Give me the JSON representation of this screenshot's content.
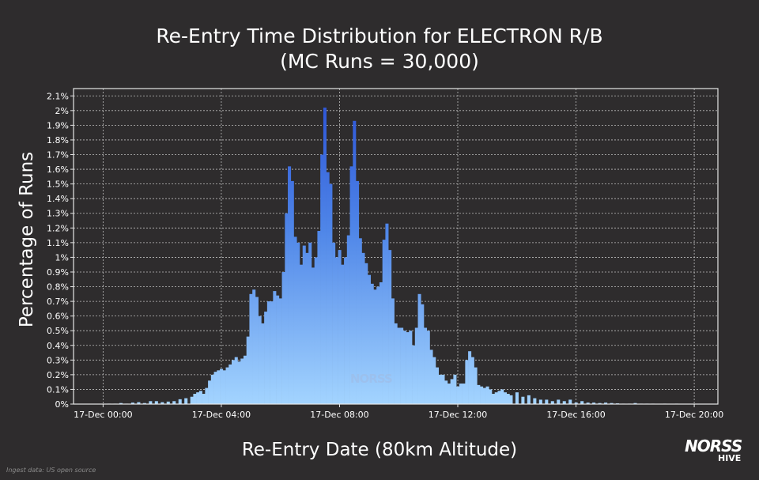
{
  "chart_data": {
    "type": "bar",
    "title": [
      "Re-Entry Time Distribution for ELECTRON R/B",
      "(MC Runs = 30,000)"
    ],
    "xlabel": "Re-Entry Date (80km Altitude)",
    "ylabel": "Percentage of Runs",
    "x_unit": "hours after 17-Dec 00:00",
    "xlim": [
      -1,
      20.8
    ],
    "ylim": [
      0,
      2.15
    ],
    "grid": true,
    "x_ticks": [
      {
        "x": 0,
        "label": "17-Dec 00:00"
      },
      {
        "x": 4,
        "label": "17-Dec 04:00"
      },
      {
        "x": 8,
        "label": "17-Dec 08:00"
      },
      {
        "x": 12,
        "label": "17-Dec 12:00"
      },
      {
        "x": 16,
        "label": "17-Dec 16:00"
      },
      {
        "x": 20,
        "label": "17-Dec 20:00"
      }
    ],
    "y_ticks": [
      {
        "y": 0,
        "label": "0%"
      },
      {
        "y": 0.1,
        "label": "0.1%"
      },
      {
        "y": 0.2,
        "label": "0.2%"
      },
      {
        "y": 0.3,
        "label": "0.3%"
      },
      {
        "y": 0.4,
        "label": "0.4%"
      },
      {
        "y": 0.5,
        "label": "0.5%"
      },
      {
        "y": 0.6,
        "label": "0.6%"
      },
      {
        "y": 0.7,
        "label": "0.7%"
      },
      {
        "y": 0.8,
        "label": "0.8%"
      },
      {
        "y": 0.9,
        "label": "0.9%"
      },
      {
        "y": 1.0,
        "label": "1%"
      },
      {
        "y": 1.1,
        "label": "1.1%"
      },
      {
        "y": 1.2,
        "label": "1.2%"
      },
      {
        "y": 1.3,
        "label": "1.3%"
      },
      {
        "y": 1.4,
        "label": "1.4%"
      },
      {
        "y": 1.5,
        "label": "1.5%"
      },
      {
        "y": 1.6,
        "label": "1.6%"
      },
      {
        "y": 1.7,
        "label": "1.7%"
      },
      {
        "y": 1.8,
        "label": "1.8%"
      },
      {
        "y": 1.9,
        "label": "1.9%"
      },
      {
        "y": 2.0,
        "label": "2%"
      },
      {
        "y": 2.1,
        "label": "2.1%"
      }
    ],
    "bin_width_hours": 0.1,
    "bins": [
      {
        "x": 0.0,
        "y": 0.0
      },
      {
        "x": 0.2,
        "y": 0.003
      },
      {
        "x": 0.4,
        "y": 0.003
      },
      {
        "x": 0.6,
        "y": 0.007
      },
      {
        "x": 0.8,
        "y": 0.003
      },
      {
        "x": 1.0,
        "y": 0.01
      },
      {
        "x": 1.2,
        "y": 0.013
      },
      {
        "x": 1.4,
        "y": 0.007
      },
      {
        "x": 1.6,
        "y": 0.02
      },
      {
        "x": 1.8,
        "y": 0.02
      },
      {
        "x": 2.0,
        "y": 0.013
      },
      {
        "x": 2.2,
        "y": 0.017
      },
      {
        "x": 2.4,
        "y": 0.02
      },
      {
        "x": 2.6,
        "y": 0.033
      },
      {
        "x": 2.8,
        "y": 0.04
      },
      {
        "x": 3.0,
        "y": 0.05
      },
      {
        "x": 3.1,
        "y": 0.07
      },
      {
        "x": 3.2,
        "y": 0.08
      },
      {
        "x": 3.3,
        "y": 0.09
      },
      {
        "x": 3.4,
        "y": 0.07
      },
      {
        "x": 3.5,
        "y": 0.11
      },
      {
        "x": 3.6,
        "y": 0.16
      },
      {
        "x": 3.7,
        "y": 0.2
      },
      {
        "x": 3.8,
        "y": 0.22
      },
      {
        "x": 3.9,
        "y": 0.23
      },
      {
        "x": 4.0,
        "y": 0.24
      },
      {
        "x": 4.1,
        "y": 0.23
      },
      {
        "x": 4.2,
        "y": 0.25
      },
      {
        "x": 4.3,
        "y": 0.27
      },
      {
        "x": 4.4,
        "y": 0.3
      },
      {
        "x": 4.5,
        "y": 0.32
      },
      {
        "x": 4.6,
        "y": 0.29
      },
      {
        "x": 4.7,
        "y": 0.31
      },
      {
        "x": 4.8,
        "y": 0.33
      },
      {
        "x": 4.9,
        "y": 0.46
      },
      {
        "x": 5.0,
        "y": 0.75
      },
      {
        "x": 5.1,
        "y": 0.78
      },
      {
        "x": 5.2,
        "y": 0.73
      },
      {
        "x": 5.3,
        "y": 0.6
      },
      {
        "x": 5.4,
        "y": 0.55
      },
      {
        "x": 5.5,
        "y": 0.63
      },
      {
        "x": 5.6,
        "y": 0.7
      },
      {
        "x": 5.7,
        "y": 0.7
      },
      {
        "x": 5.8,
        "y": 0.77
      },
      {
        "x": 5.9,
        "y": 0.74
      },
      {
        "x": 6.0,
        "y": 0.72
      },
      {
        "x": 6.1,
        "y": 0.9
      },
      {
        "x": 6.2,
        "y": 1.3
      },
      {
        "x": 6.3,
        "y": 1.62
      },
      {
        "x": 6.4,
        "y": 1.52
      },
      {
        "x": 6.5,
        "y": 1.14
      },
      {
        "x": 6.6,
        "y": 1.1
      },
      {
        "x": 6.7,
        "y": 0.95
      },
      {
        "x": 6.8,
        "y": 1.08
      },
      {
        "x": 6.9,
        "y": 1.03
      },
      {
        "x": 7.0,
        "y": 1.1
      },
      {
        "x": 7.1,
        "y": 0.93
      },
      {
        "x": 7.2,
        "y": 1.0
      },
      {
        "x": 7.3,
        "y": 1.18
      },
      {
        "x": 7.4,
        "y": 1.7
      },
      {
        "x": 7.5,
        "y": 2.02
      },
      {
        "x": 7.6,
        "y": 1.58
      },
      {
        "x": 7.7,
        "y": 1.5
      },
      {
        "x": 7.8,
        "y": 1.1
      },
      {
        "x": 7.9,
        "y": 1.0
      },
      {
        "x": 8.0,
        "y": 1.05
      },
      {
        "x": 8.1,
        "y": 0.95
      },
      {
        "x": 8.2,
        "y": 1.0
      },
      {
        "x": 8.3,
        "y": 1.15
      },
      {
        "x": 8.4,
        "y": 1.62
      },
      {
        "x": 8.5,
        "y": 1.93
      },
      {
        "x": 8.6,
        "y": 1.52
      },
      {
        "x": 8.7,
        "y": 1.13
      },
      {
        "x": 8.8,
        "y": 1.03
      },
      {
        "x": 8.9,
        "y": 0.96
      },
      {
        "x": 9.0,
        "y": 0.88
      },
      {
        "x": 9.1,
        "y": 0.82
      },
      {
        "x": 9.2,
        "y": 0.78
      },
      {
        "x": 9.3,
        "y": 0.8
      },
      {
        "x": 9.4,
        "y": 0.83
      },
      {
        "x": 9.5,
        "y": 1.12
      },
      {
        "x": 9.6,
        "y": 1.23
      },
      {
        "x": 9.7,
        "y": 1.05
      },
      {
        "x": 9.8,
        "y": 0.72
      },
      {
        "x": 9.9,
        "y": 0.55
      },
      {
        "x": 10.0,
        "y": 0.52
      },
      {
        "x": 10.1,
        "y": 0.52
      },
      {
        "x": 10.2,
        "y": 0.5
      },
      {
        "x": 10.3,
        "y": 0.49
      },
      {
        "x": 10.4,
        "y": 0.5
      },
      {
        "x": 10.5,
        "y": 0.4
      },
      {
        "x": 10.6,
        "y": 0.52
      },
      {
        "x": 10.7,
        "y": 0.75
      },
      {
        "x": 10.8,
        "y": 0.68
      },
      {
        "x": 10.9,
        "y": 0.52
      },
      {
        "x": 11.0,
        "y": 0.5
      },
      {
        "x": 11.1,
        "y": 0.37
      },
      {
        "x": 11.2,
        "y": 0.32
      },
      {
        "x": 11.3,
        "y": 0.25
      },
      {
        "x": 11.4,
        "y": 0.2
      },
      {
        "x": 11.5,
        "y": 0.2
      },
      {
        "x": 11.6,
        "y": 0.16
      },
      {
        "x": 11.7,
        "y": 0.14
      },
      {
        "x": 11.8,
        "y": 0.17
      },
      {
        "x": 11.9,
        "y": 0.2
      },
      {
        "x": 12.0,
        "y": 0.12
      },
      {
        "x": 12.1,
        "y": 0.14
      },
      {
        "x": 12.2,
        "y": 0.14
      },
      {
        "x": 12.3,
        "y": 0.3
      },
      {
        "x": 12.4,
        "y": 0.36
      },
      {
        "x": 12.5,
        "y": 0.32
      },
      {
        "x": 12.6,
        "y": 0.25
      },
      {
        "x": 12.7,
        "y": 0.13
      },
      {
        "x": 12.8,
        "y": 0.12
      },
      {
        "x": 12.9,
        "y": 0.11
      },
      {
        "x": 13.0,
        "y": 0.12
      },
      {
        "x": 13.1,
        "y": 0.1
      },
      {
        "x": 13.2,
        "y": 0.07
      },
      {
        "x": 13.3,
        "y": 0.08
      },
      {
        "x": 13.4,
        "y": 0.09
      },
      {
        "x": 13.5,
        "y": 0.1
      },
      {
        "x": 13.6,
        "y": 0.08
      },
      {
        "x": 13.7,
        "y": 0.07
      },
      {
        "x": 13.8,
        "y": 0.06
      },
      {
        "x": 14.0,
        "y": 0.08
      },
      {
        "x": 14.2,
        "y": 0.05
      },
      {
        "x": 14.4,
        "y": 0.06
      },
      {
        "x": 14.6,
        "y": 0.04
      },
      {
        "x": 14.8,
        "y": 0.03
      },
      {
        "x": 15.0,
        "y": 0.03
      },
      {
        "x": 15.2,
        "y": 0.02
      },
      {
        "x": 15.4,
        "y": 0.03
      },
      {
        "x": 15.6,
        "y": 0.02
      },
      {
        "x": 15.8,
        "y": 0.03
      },
      {
        "x": 16.0,
        "y": 0.01
      },
      {
        "x": 16.2,
        "y": 0.02
      },
      {
        "x": 16.4,
        "y": 0.01
      },
      {
        "x": 16.6,
        "y": 0.01
      },
      {
        "x": 16.8,
        "y": 0.007
      },
      {
        "x": 17.0,
        "y": 0.01
      },
      {
        "x": 17.2,
        "y": 0.007
      },
      {
        "x": 17.4,
        "y": 0.005
      },
      {
        "x": 17.6,
        "y": 0.003
      },
      {
        "x": 17.8,
        "y": 0.003
      },
      {
        "x": 18.0,
        "y": 0.007
      },
      {
        "x": 18.2,
        "y": 0.003
      },
      {
        "x": 18.4,
        "y": 0.003
      },
      {
        "x": 18.6,
        "y": 0.003
      },
      {
        "x": 18.8,
        "y": 0.0
      },
      {
        "x": 19.0,
        "y": 0.003
      },
      {
        "x": 19.4,
        "y": 0.003
      },
      {
        "x": 19.8,
        "y": 0.0
      }
    ],
    "colors": {
      "bar_top": "#2f5bd8",
      "bar_bottom": "#9dd0ff",
      "background": "#2e2c2d",
      "grid": "#bfbfbf"
    }
  },
  "watermark": "NORSS",
  "source_note": "Ingest data: US open source",
  "logo": {
    "line1": "NORSS",
    "line2": "HIVE"
  }
}
